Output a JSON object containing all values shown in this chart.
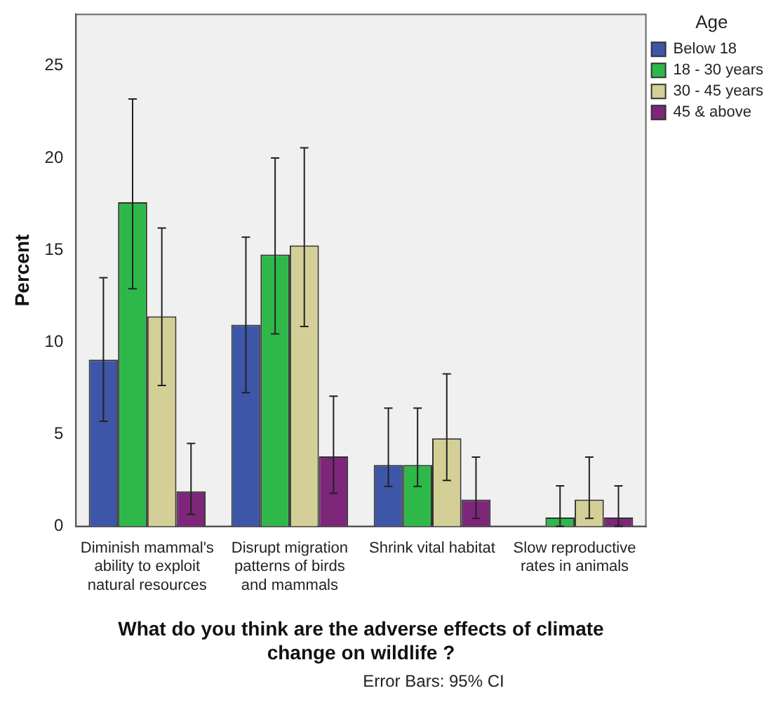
{
  "chart_data": {
    "type": "bar",
    "categories": [
      "Diminish mammal's ability to exploit natural resources",
      "Disrupt migration patterns of birds and mammals",
      "Shrink vital habitat",
      "Slow reproductive rates in animals"
    ],
    "xlabel": "What do you think are the adverse effects of climate change on wildlife ?",
    "ylabel": "Percent",
    "legend_title": "Age",
    "series": [
      {
        "name": "Below 18",
        "color": "#3e56a8",
        "values": [
          9.05,
          10.95,
          3.33,
          0
        ],
        "errors": [
          [
            5.7,
            13.5
          ],
          [
            7.26,
            15.7
          ],
          [
            2.17,
            6.42
          ],
          null
        ]
      },
      {
        "name": "18 - 30 years",
        "color": "#2eb84a",
        "values": [
          17.6,
          14.76,
          3.33,
          0.48
        ],
        "errors": [
          [
            12.9,
            23.2
          ],
          [
            10.45,
            20.0
          ],
          [
            2.17,
            6.42
          ],
          [
            0,
            2.2
          ]
        ]
      },
      {
        "name": "30 - 45 years",
        "color": "#d4cf96",
        "values": [
          11.4,
          15.25,
          4.78,
          1.45
        ],
        "errors": [
          [
            7.65,
            16.2
          ],
          [
            10.85,
            20.55
          ],
          [
            2.49,
            8.28
          ],
          [
            0.43,
            3.76
          ]
        ]
      },
      {
        "name": "45 & above",
        "color": "#7d267a",
        "values": [
          1.9,
          3.8,
          1.45,
          0.48
        ],
        "errors": [
          [
            0.65,
            4.5
          ],
          [
            1.8,
            7.07
          ],
          [
            0.43,
            3.76
          ],
          [
            0,
            2.2
          ]
        ]
      }
    ],
    "ylim": [
      0,
      27.8
    ],
    "yticks": [
      0,
      5,
      10,
      15,
      20,
      25
    ],
    "grid": false,
    "legend": "top right",
    "annotations": [
      "Error Bars: 95% CI"
    ]
  }
}
